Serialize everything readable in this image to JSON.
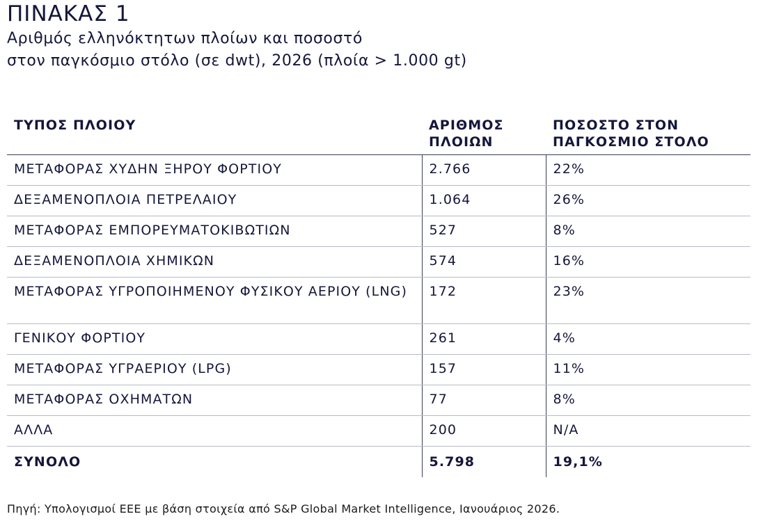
{
  "title": "ΠΙΝΑΚΑΣ 1",
  "subtitle_line1": "Αριθμός ελληνόκτητων πλοίων και ποσοστό",
  "subtitle_line2": "στον παγκόσμιο στόλο (σε dwt), 2026 (πλοία > 1.000 gt)",
  "table": {
    "headers": [
      "ΤΥΠΟΣ ΠΛΟΙΟΥ",
      "ΑΡΙΘΜΟΣ ΠΛΟΙΩΝ",
      "ΠΟΣΟΣΤΟ ΣΤΟΝ ΠΑΓΚΟΣΜΙΟ ΣΤΟΛΟ"
    ],
    "rows": [
      [
        "ΜΕΤΑΦΟΡΑΣ ΧΥΔΗΝ ΞΗΡΟΥ ΦΟΡΤΙΟΥ",
        "2.766",
        "22%"
      ],
      [
        "ΔΕΞΑΜΕΝΟΠΛΟΙΑ ΠΕΤΡΕΛΑΙΟΥ",
        "1.064",
        "26%"
      ],
      [
        "ΜΕΤΑΦΟΡΑΣ ΕΜΠΟΡΕΥΜΑΤΟΚΙΒΩΤΙΩΝ",
        "527",
        "8%"
      ],
      [
        "ΔΕΞΑΜΕΝΟΠΛΟΙΑ ΧΗΜΙΚΩΝ",
        "574",
        "16%"
      ],
      [
        "ΜΕΤΑΦΟΡΑΣ ΥΓΡΟΠΟΙΗΜΕΝΟΥ ΦΥΣΙΚΟΥ ΑΕΡΙΟΥ (LNG)",
        "172",
        "23%"
      ],
      [
        "ΓΕΝΙΚΟΥ ΦΟΡΤΙΟΥ",
        "261",
        "4%"
      ],
      [
        "ΜΕΤΑΦΟΡΑΣ ΥΓΡΑΕΡΙΟΥ (LPG)",
        "157",
        "11%"
      ],
      [
        "ΜΕΤΑΦΟΡΑΣ ΟΧΗΜΑΤΩΝ",
        "77",
        "8%"
      ],
      [
        "ΑΛΛΑ",
        "200",
        "N/A"
      ]
    ],
    "total": [
      "ΣΥΝΟΛΟ",
      "5.798",
      "19,1%"
    ]
  },
  "source": "Πηγή: Υπολογισμοί ΕΕΕ με βάση στοιχεία από S&P Global Market Intelligence, Ιανουάριος 2026."
}
